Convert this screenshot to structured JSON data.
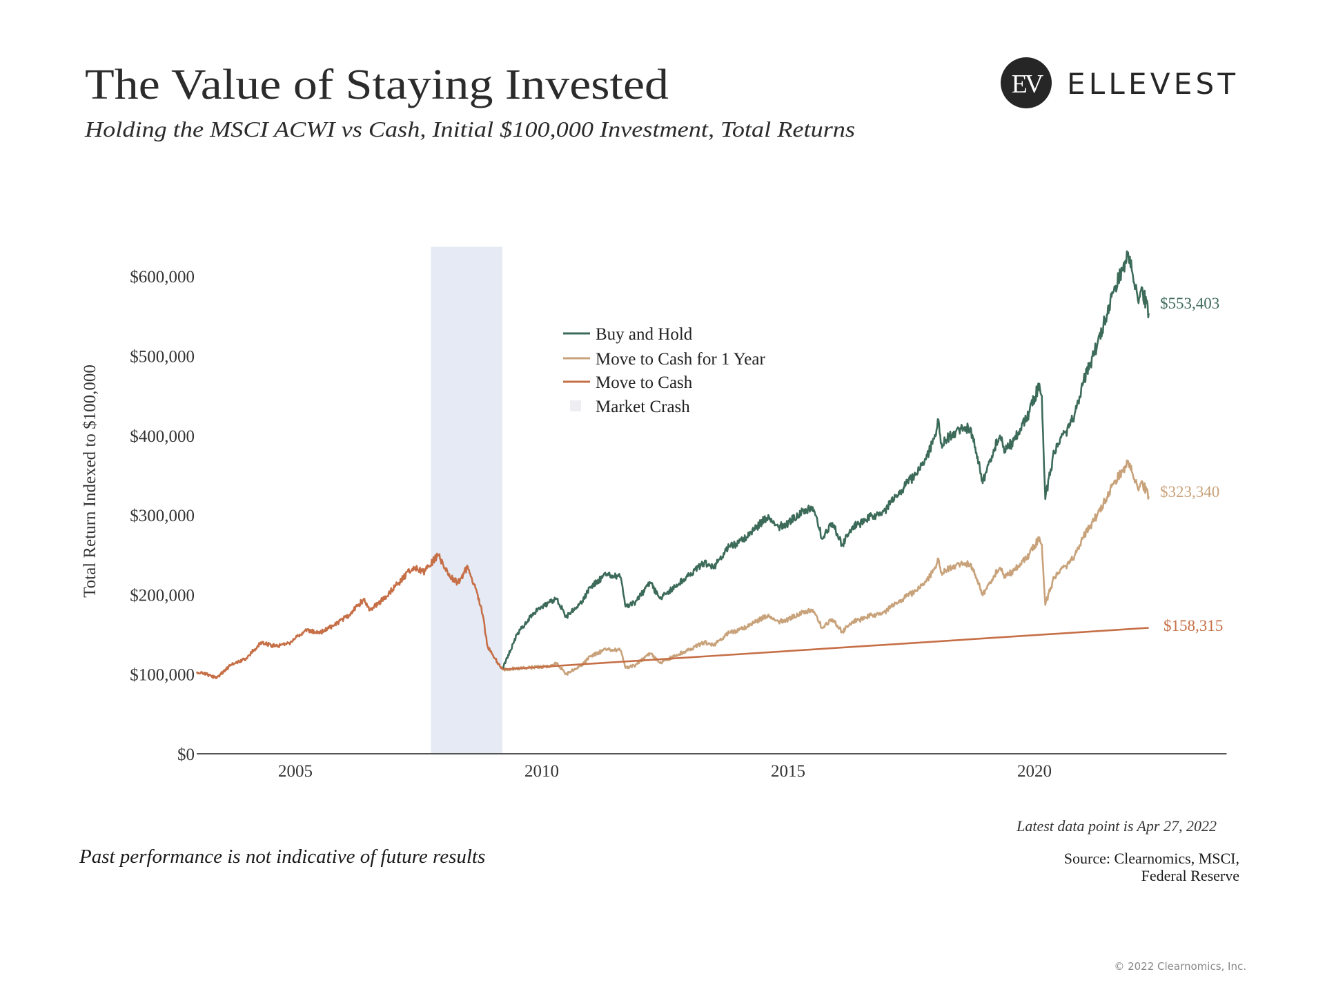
{
  "header": {
    "title": "The Value of Staying Invested",
    "subtitle": "Holding the MSCI ACWI vs Cash, Initial $100,000 Investment, Total Returns",
    "logo_monogram": "EV",
    "logo_text": "ELLEVEST"
  },
  "footer": {
    "latest": "Latest data point is Apr 27, 2022",
    "disclaimer": "Past performance is not indicative of future results",
    "source_line1": "Source: Clearnomics, MSCI,",
    "source_line2": "Federal Reserve",
    "copyright": "© 2022 Clearnomics, Inc."
  },
  "chart_data": {
    "type": "line",
    "title": "The Value of Staying Invested",
    "xlabel": "",
    "ylabel": "Total Return Indexed to $100,000",
    "xlim": [
      2003.0,
      2023.9
    ],
    "ylim": [
      0,
      637000
    ],
    "x_ticks": [
      2005,
      2010,
      2015,
      2020
    ],
    "x_tick_labels": [
      "2005",
      "2010",
      "2015",
      "2020"
    ],
    "y_ticks": [
      0,
      100000,
      200000,
      300000,
      400000,
      500000,
      600000
    ],
    "y_tick_labels": [
      "$0",
      "$100,000",
      "$200,000",
      "$300,000",
      "$400,000",
      "$500,000",
      "$600,000"
    ],
    "grid": false,
    "legend_position": "top-center",
    "colors": {
      "buy_hold": "#3d6b59",
      "cash_1yr": "#c8a27a",
      "cash": "#c66f47",
      "crash": "#e5eaf5",
      "axis": "#555555"
    },
    "legend": [
      "Buy and Hold",
      "Move to Cash for 1 Year",
      "Move to Cash",
      "Market Crash"
    ],
    "market_crash": {
      "label": "Market Crash",
      "start": 2007.75,
      "end": 2009.2
    },
    "shared_history": {
      "x": [
        2003.0,
        2003.2,
        2003.4,
        2003.7,
        2004.0,
        2004.3,
        2004.6,
        2004.9,
        2005.2,
        2005.5,
        2005.8,
        2006.1,
        2006.4,
        2006.5,
        2006.8,
        2007.1,
        2007.4,
        2007.6,
        2007.9,
        2008.1,
        2008.3,
        2008.5,
        2008.7,
        2008.8,
        2008.9,
        2009.0,
        2009.1,
        2009.2
      ],
      "y": [
        103,
        100,
        95,
        112,
        120,
        140,
        135,
        140,
        155,
        152,
        162,
        175,
        195,
        180,
        195,
        215,
        235,
        228,
        250,
        225,
        215,
        235,
        200,
        175,
        135,
        125,
        115,
        106
      ]
    },
    "series": [
      {
        "name": "Buy and Hold",
        "end_label": "$553,403",
        "x": [
          2009.2,
          2009.5,
          2009.8,
          2010.0,
          2010.3,
          2010.5,
          2010.8,
          2011.0,
          2011.3,
          2011.6,
          2011.7,
          2011.9,
          2012.2,
          2012.4,
          2012.7,
          2013.0,
          2013.3,
          2013.5,
          2013.8,
          2014.0,
          2014.3,
          2014.6,
          2014.8,
          2015.0,
          2015.3,
          2015.5,
          2015.6,
          2015.7,
          2015.9,
          2016.1,
          2016.3,
          2016.5,
          2016.7,
          2016.9,
          2017.2,
          2017.5,
          2017.8,
          2018.0,
          2018.05,
          2018.1,
          2018.4,
          2018.7,
          2018.8,
          2018.95,
          2019.1,
          2019.3,
          2019.4,
          2019.6,
          2019.9,
          2020.1,
          2020.15,
          2020.22,
          2020.4,
          2020.7,
          2020.9,
          2021.0,
          2021.2,
          2021.4,
          2021.6,
          2021.8,
          2021.9,
          2022.0,
          2022.1,
          2022.2,
          2022.32
        ],
        "y": [
          106,
          150,
          175,
          185,
          195,
          172,
          190,
          210,
          225,
          222,
          185,
          190,
          215,
          195,
          210,
          225,
          240,
          235,
          260,
          265,
          280,
          300,
          285,
          290,
          305,
          310,
          290,
          270,
          290,
          262,
          285,
          290,
          300,
          300,
          325,
          345,
          370,
          400,
          420,
          390,
          405,
          410,
          385,
          340,
          370,
          400,
          380,
          395,
          430,
          465,
          450,
          320,
          380,
          410,
          440,
          470,
          500,
          540,
          580,
          610,
          630,
          600,
          570,
          580,
          553.4
        ]
      },
      {
        "name": "Move to Cash for 1 Year",
        "end_label": "$323,340",
        "x": [
          2009.2,
          2010.2,
          2010.3,
          2010.5,
          2010.8,
          2011.0,
          2011.3,
          2011.6,
          2011.7,
          2011.9,
          2012.2,
          2012.4,
          2012.7,
          2013.0,
          2013.3,
          2013.5,
          2013.8,
          2014.0,
          2014.3,
          2014.6,
          2014.8,
          2015.0,
          2015.3,
          2015.5,
          2015.6,
          2015.7,
          2015.9,
          2016.1,
          2016.3,
          2016.5,
          2016.7,
          2016.9,
          2017.2,
          2017.5,
          2017.8,
          2018.0,
          2018.05,
          2018.1,
          2018.4,
          2018.7,
          2018.8,
          2018.95,
          2019.1,
          2019.3,
          2019.4,
          2019.6,
          2019.9,
          2020.1,
          2020.15,
          2020.22,
          2020.4,
          2020.7,
          2020.9,
          2021.0,
          2021.2,
          2021.4,
          2021.6,
          2021.8,
          2021.9,
          2022.0,
          2022.1,
          2022.2,
          2022.32
        ],
        "y": [
          106,
          110,
          114,
          100,
          111,
          123,
          131,
          130,
          108,
          111,
          126,
          114,
          123,
          131,
          140,
          137,
          152,
          155,
          164,
          175,
          166,
          169,
          178,
          181,
          169,
          158,
          169,
          153,
          166,
          169,
          175,
          175,
          190,
          201,
          216,
          234,
          245,
          228,
          237,
          239,
          225,
          199,
          216,
          234,
          222,
          231,
          251,
          272,
          263,
          187,
          222,
          239,
          257,
          274,
          292,
          315,
          339,
          356,
          368,
          350,
          333,
          339,
          323.3
        ]
      },
      {
        "name": "Move to Cash",
        "end_label": "$158,315",
        "x": [
          2009.2,
          2022.32
        ],
        "y": [
          106,
          158.3
        ]
      }
    ]
  }
}
